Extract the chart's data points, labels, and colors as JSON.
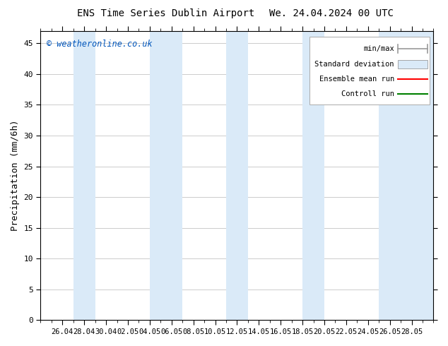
{
  "title_left": "ENS Time Series Dublin Airport",
  "title_right": "We. 24.04.2024 00 UTC",
  "ylabel": "Precipitation (mm/6h)",
  "watermark": "© weatheronline.co.uk",
  "watermark_color": "#0055bb",
  "ylim": [
    0,
    47
  ],
  "yticks": [
    0,
    5,
    10,
    15,
    20,
    25,
    30,
    35,
    40,
    45
  ],
  "xtick_labels": [
    "26.04",
    "28.04",
    "30.04",
    "02.05",
    "04.05",
    "06.05",
    "08.05",
    "10.05",
    "12.05",
    "14.05",
    "16.05",
    "18.05",
    "20.05",
    "22.05",
    "24.05",
    "26.05",
    "28.05"
  ],
  "background_color": "#ffffff",
  "plot_bg_color": "#ffffff",
  "band_color_stddev": "#daeaf8",
  "ensemble_mean_color": "#ff0000",
  "control_run_color": "#008000",
  "grid_color": "#cccccc",
  "num_days": 34
}
